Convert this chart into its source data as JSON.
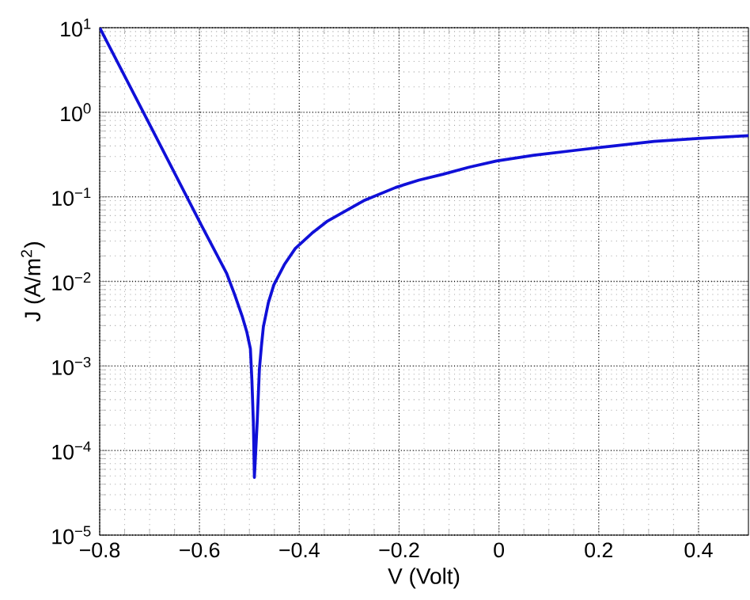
{
  "chart_data": {
    "type": "line",
    "xlabel": "V (Volt)",
    "ylabel": "J (A/m$^{2}$)",
    "log": "y",
    "grid": true,
    "marker": "none",
    "line_style": "solid",
    "xlim": [
      -0.8,
      0.5
    ],
    "ylim": [
      1e-05,
      10
    ],
    "xticks": [
      {
        "value": -0.8,
        "label": "−0.8"
      },
      {
        "value": -0.6,
        "label": "−0.6"
      },
      {
        "value": -0.4,
        "label": "−0.4"
      },
      {
        "value": -0.2,
        "label": "−0.2"
      },
      {
        "value": 0,
        "label": "0"
      },
      {
        "value": 0.2,
        "label": "0.2"
      },
      {
        "value": 0.4,
        "label": "0.4"
      }
    ],
    "yticks": [
      {
        "value": 1e-05,
        "label": "10$^{−5}$"
      },
      {
        "value": 0.0001,
        "label": "10$^{−4}$"
      },
      {
        "value": 0.001,
        "label": "10$^{−3}$"
      },
      {
        "value": 0.01,
        "label": "10$^{−2}$"
      },
      {
        "value": 0.1,
        "label": "10$^{−1}$"
      },
      {
        "value": 1,
        "label": "10$^{0}$"
      },
      {
        "value": 10,
        "label": "10$^{1}$"
      }
    ],
    "x": [
      -0.8,
      -0.7,
      -0.6,
      -0.546,
      -0.53,
      -0.514,
      -0.505,
      -0.498,
      -0.495,
      -0.492,
      -0.49,
      -0.4845,
      -0.48,
      -0.476,
      -0.472,
      -0.462,
      -0.451,
      -0.43,
      -0.408,
      -0.375,
      -0.345,
      -0.3,
      -0.271,
      -0.207,
      -0.16,
      -0.112,
      -0.06,
      -0.005,
      0.07,
      0.152,
      0.23,
      0.311,
      0.4,
      0.5
    ],
    "series": [
      {
        "color": "#1010d8",
        "values": [
          10,
          0.72,
          0.051,
          0.0126,
          0.0071,
          0.0038,
          0.0025,
          0.0016,
          0.00068,
          0.00021,
          4.8e-05,
          0.00021,
          0.00091,
          0.0017,
          0.0029,
          0.0056,
          0.0091,
          0.0158,
          0.0245,
          0.037,
          0.051,
          0.072,
          0.09,
          0.129,
          0.158,
          0.185,
          0.224,
          0.265,
          0.31,
          0.354,
          0.4,
          0.452,
          0.49,
          0.53
        ]
      }
    ]
  }
}
